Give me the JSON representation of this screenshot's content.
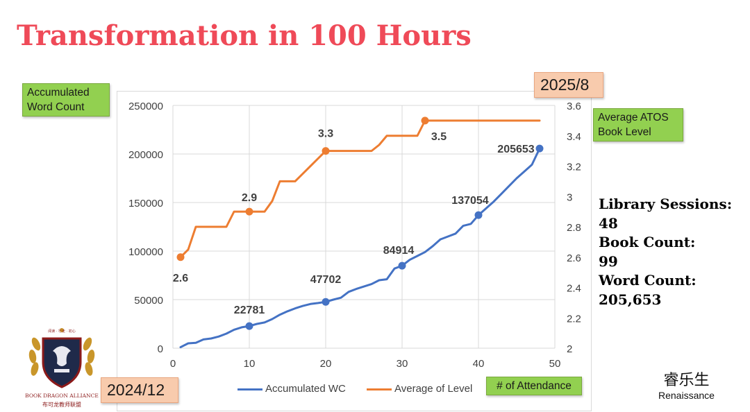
{
  "page": {
    "title": "Transformation in 100 Hours"
  },
  "labels": {
    "left_axis_box": "Accumulated\nWord Count",
    "right_axis_box": "Average ATOS\nBook Level",
    "x_axis_box": "# of Attendance",
    "start_date": "2024/12",
    "end_date": "2025/8"
  },
  "stats": [
    {
      "label": "Library Sessions:",
      "value": "48"
    },
    {
      "label": "Book Count:",
      "value": "99"
    },
    {
      "label": "Word Count:",
      "value": "205,653"
    }
  ],
  "logos": {
    "left": {
      "top_text": "阅读 · 行走 · 初心",
      "name_en": "BOOK DRAGON ALLIANCE",
      "name_cn": "布可龙教师联盟"
    },
    "right": {
      "name_cn": "睿乐生",
      "name_en": "Renaissance"
    }
  },
  "colors": {
    "title": "#ef4a58",
    "wc": "#4472c4",
    "level": "#ed7d31",
    "green_box": "#92d050",
    "salmon_box": "#f8cbad"
  },
  "chart_data": {
    "type": "line",
    "x_ticks": [
      0,
      10,
      20,
      30,
      40,
      50
    ],
    "xlim": [
      0,
      50
    ],
    "y_left_ticks": [
      0,
      50000,
      100000,
      150000,
      200000,
      250000
    ],
    "ylim_left": [
      0,
      250000
    ],
    "y_right_ticks": [
      2,
      2.2,
      2.4,
      2.6,
      2.8,
      3,
      3.2,
      3.4,
      3.6
    ],
    "ylim_right": [
      2,
      3.6
    ],
    "grid": true,
    "legend_position": "bottom",
    "series": [
      {
        "name": "Accumulated WC",
        "axis": "left",
        "x": [
          1,
          2,
          3,
          4,
          5,
          6,
          7,
          8,
          9,
          10,
          11,
          12,
          13,
          14,
          15,
          16,
          17,
          18,
          19,
          20,
          21,
          22,
          23,
          24,
          25,
          26,
          27,
          28,
          29,
          30,
          31,
          32,
          33,
          34,
          35,
          36,
          37,
          38,
          39,
          40,
          41,
          42,
          43,
          44,
          45,
          46,
          47,
          48
        ],
        "y": [
          1000,
          5000,
          5500,
          9000,
          10000,
          12000,
          15000,
          19000,
          21500,
          22781,
          25000,
          26500,
          30000,
          34500,
          38000,
          41000,
          43500,
          45500,
          46500,
          47702,
          50000,
          52000,
          58000,
          61000,
          63500,
          66000,
          70000,
          71000,
          82000,
          84914,
          91000,
          95000,
          99000,
          105000,
          112000,
          115000,
          118000,
          126000,
          128000,
          137054,
          144000,
          151000,
          159000,
          167000,
          175000,
          182000,
          189000,
          205653
        ],
        "markers": [
          {
            "x": 10,
            "y": 22781,
            "label": "22781"
          },
          {
            "x": 20,
            "y": 47702,
            "label": "47702"
          },
          {
            "x": 30,
            "y": 84914,
            "label": "84914"
          },
          {
            "x": 40,
            "y": 137054,
            "label": "137054"
          },
          {
            "x": 48,
            "y": 205653,
            "label": "205653"
          }
        ]
      },
      {
        "name": "Average of Level",
        "axis": "right",
        "x": [
          1,
          2,
          3,
          4,
          5,
          6,
          7,
          8,
          9,
          10,
          11,
          12,
          13,
          14,
          15,
          16,
          17,
          18,
          19,
          20,
          21,
          22,
          23,
          24,
          25,
          26,
          27,
          28,
          29,
          30,
          31,
          32,
          33,
          34,
          35,
          36,
          37,
          38,
          39,
          40,
          41,
          42,
          43,
          44,
          45,
          46,
          47,
          48
        ],
        "y": [
          2.6,
          2.65,
          2.8,
          2.8,
          2.8,
          2.8,
          2.8,
          2.9,
          2.9,
          2.9,
          2.9,
          2.9,
          2.97,
          3.1,
          3.1,
          3.1,
          3.15,
          3.2,
          3.25,
          3.3,
          3.3,
          3.3,
          3.3,
          3.3,
          3.3,
          3.3,
          3.34,
          3.4,
          3.4,
          3.4,
          3.4,
          3.4,
          3.5,
          3.5,
          3.5,
          3.5,
          3.5,
          3.5,
          3.5,
          3.5,
          3.5,
          3.5,
          3.5,
          3.5,
          3.5,
          3.5,
          3.5,
          3.5
        ],
        "markers": [
          {
            "x": 1,
            "y": 2.6,
            "label": "2.6"
          },
          {
            "x": 10,
            "y": 2.9,
            "label": "2.9"
          },
          {
            "x": 20,
            "y": 3.3,
            "label": "3.3"
          },
          {
            "x": 33,
            "y": 3.5,
            "label": "3.5"
          }
        ]
      }
    ]
  }
}
